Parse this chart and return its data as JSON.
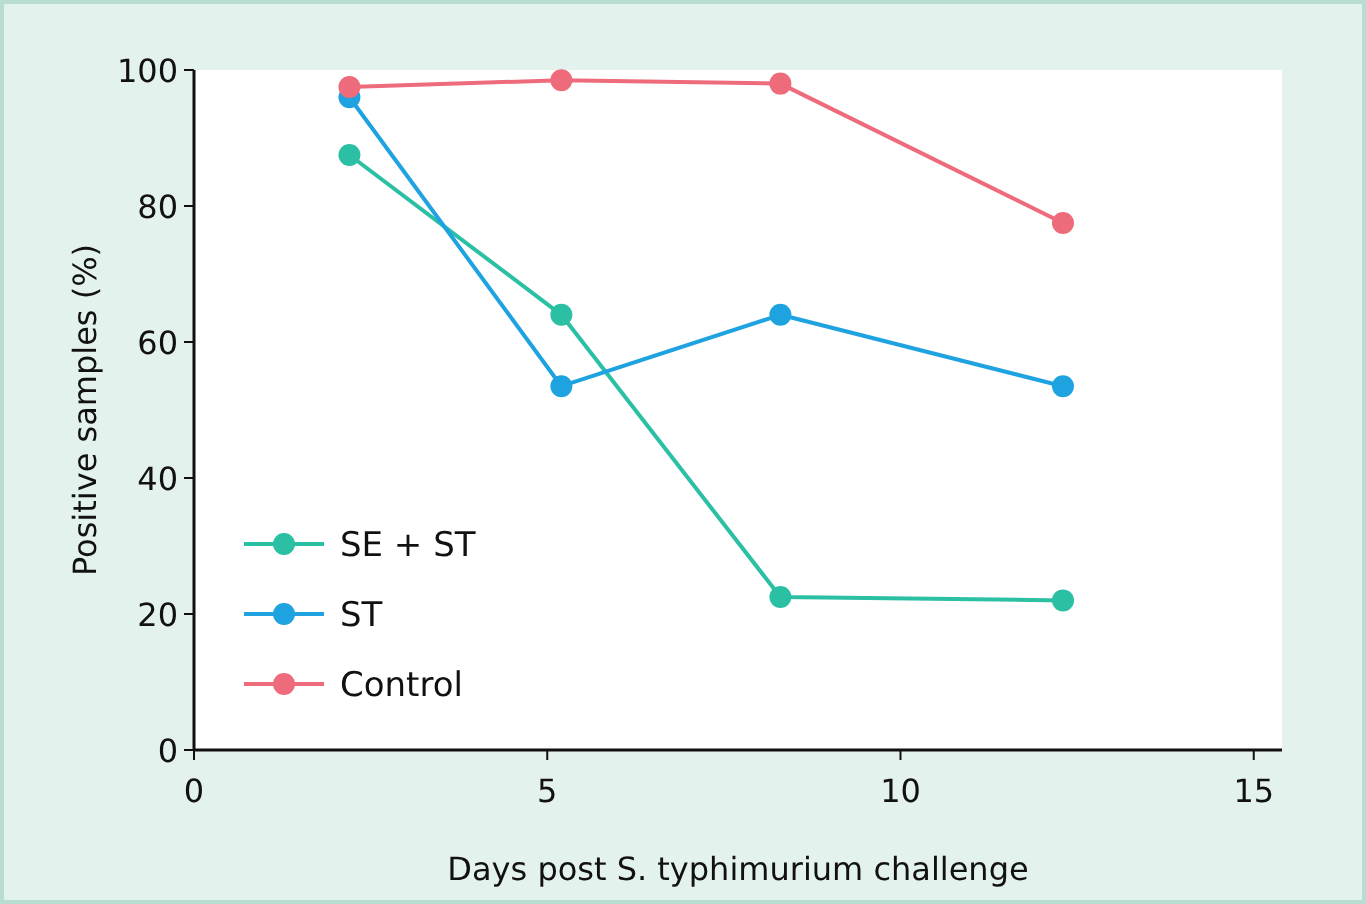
{
  "chart_data": {
    "type": "line",
    "xlabel": "Days post S. typhimurium challenge",
    "ylabel": "Positive samples (%)",
    "x": [
      2.2,
      5.2,
      8.3,
      12.3
    ],
    "series": [
      {
        "name": "SE + ST",
        "color": "#2bbfa4",
        "values": [
          87.5,
          64,
          22.5,
          22
        ]
      },
      {
        "name": "ST",
        "color": "#1fa3e0",
        "values": [
          96,
          53.5,
          64,
          53.5
        ]
      },
      {
        "name": "Control",
        "color": "#ee6b7b",
        "values": [
          97.5,
          98.5,
          98,
          77.5
        ]
      }
    ],
    "xlim": [
      0,
      15.4
    ],
    "xticks": [
      0,
      5,
      10,
      15
    ],
    "ylim": [
      0,
      100
    ],
    "yticks": [
      0,
      20,
      40,
      60,
      80,
      100
    ],
    "grid": false,
    "legend": "bottom left",
    "marker": "circle",
    "line_style": "solid"
  }
}
